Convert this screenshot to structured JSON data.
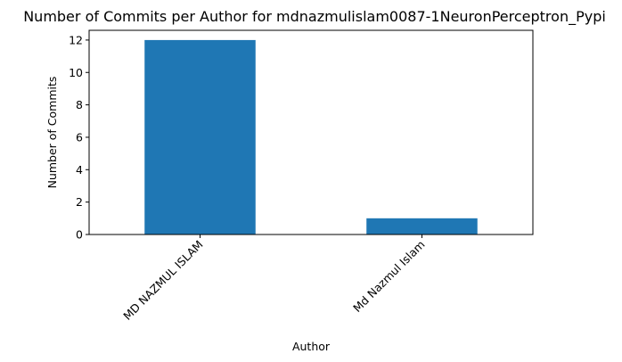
{
  "chart_data": {
    "type": "bar",
    "title": "Number of Commits per Author for mdnazmulislam0087-1NeuronPerceptron_Pypi",
    "xlabel": "Author",
    "ylabel": "Number of Commits",
    "categories": [
      "MD NAZMUL ISLAM",
      "Md Nazmul Islam"
    ],
    "values": [
      12,
      1
    ],
    "ylim": [
      0,
      12.6
    ],
    "yticks": [
      0,
      2,
      4,
      6,
      8,
      10,
      12
    ],
    "bar_color": "#1f77b4",
    "grid": false,
    "legend": "none"
  }
}
